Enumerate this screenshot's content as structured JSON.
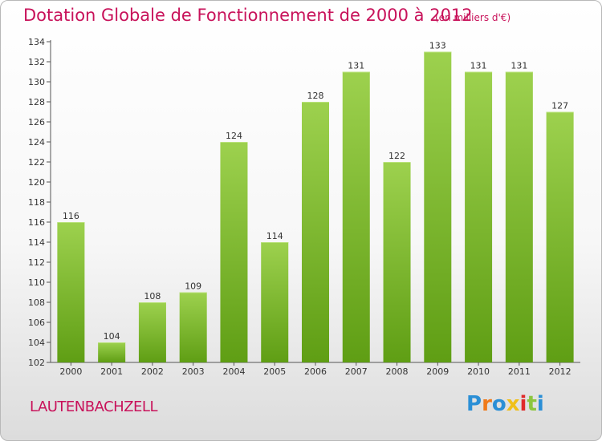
{
  "title": "Dotation Globale de Fonctionnement de 2000 à 2012",
  "subtitle": "(en milliers d'€)",
  "commune": "LAUTENBACHZELL",
  "logo": {
    "letters": [
      "P",
      "r",
      "o",
      "x",
      "i",
      "t",
      "i"
    ],
    "colors": [
      "#2b8fd6",
      "#f07a1a",
      "#2b8fd6",
      "#f0c01a",
      "#e02a2a",
      "#8cc63f",
      "#2b8fd6"
    ]
  },
  "colors": {
    "bar_top": "#9dd14e",
    "bar_bottom": "#5f9e14",
    "title": "#c8125a"
  },
  "chart_data": {
    "type": "bar",
    "categories": [
      "2000",
      "2001",
      "2002",
      "2003",
      "2004",
      "2005",
      "2006",
      "2007",
      "2008",
      "2009",
      "2010",
      "2011",
      "2012"
    ],
    "values": [
      116,
      104,
      108,
      109,
      124,
      114,
      128,
      131,
      122,
      133,
      131,
      131,
      127
    ],
    "ylim": [
      102,
      134
    ],
    "yticks": [
      "102",
      "104",
      "106",
      "108",
      "110",
      "112",
      "114",
      "116",
      "118",
      "120",
      "122",
      "124",
      "126",
      "128",
      "130",
      "132",
      "134"
    ],
    "xlabel": "",
    "ylabel": ""
  }
}
